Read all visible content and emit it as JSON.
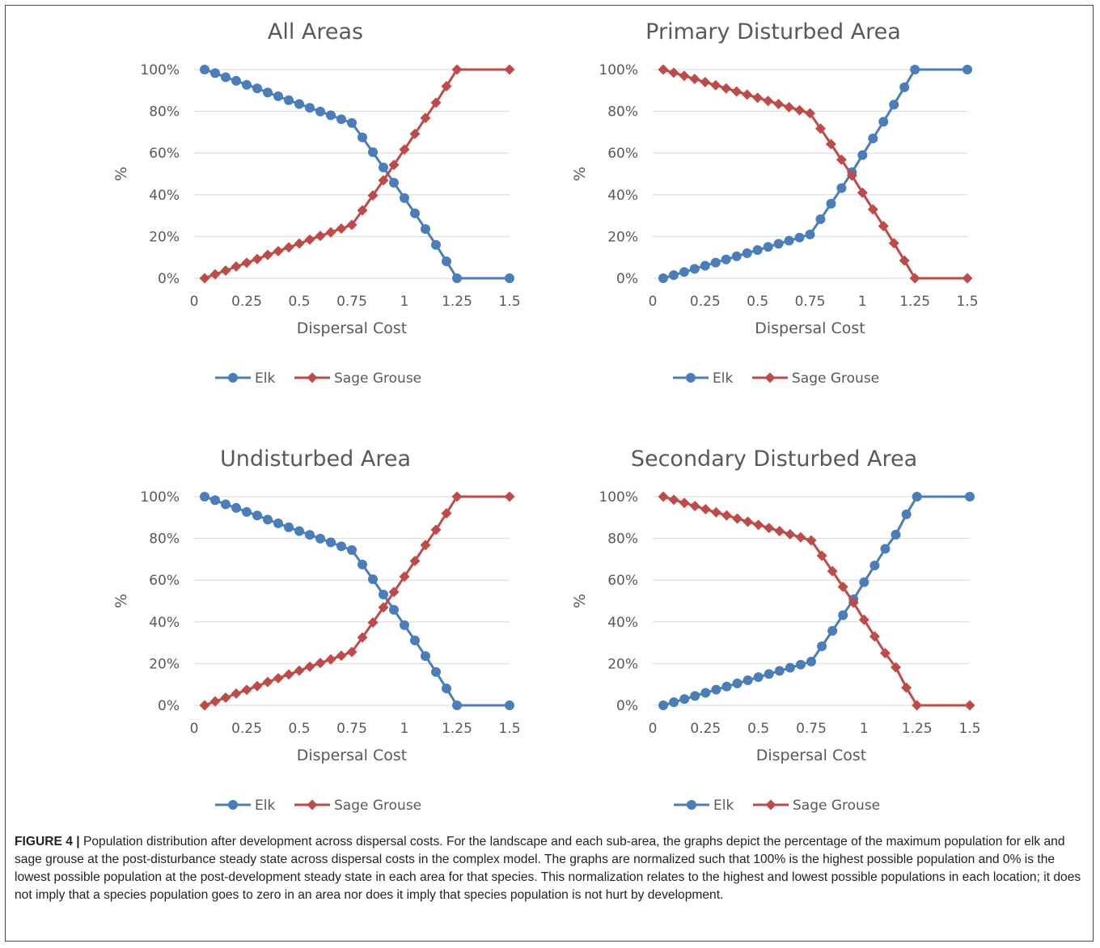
{
  "colors": {
    "elk": "#4a7ebb",
    "sage_grouse": "#be4b48",
    "grid": "#d9d9d9",
    "text": "#595959"
  },
  "legend_icons": {
    "elk": "circle-marker",
    "sage_grouse": "diamond-marker"
  },
  "chart_data": [
    {
      "type": "line",
      "title": "All Areas",
      "xlabel": "Dispersal Cost",
      "ylabel": "%",
      "xlim": [
        0,
        1.5
      ],
      "ylim": [
        0,
        100
      ],
      "x_ticks": [
        "0",
        "0.25",
        "0.5",
        "0.75",
        "1",
        "1.25",
        "1.5"
      ],
      "y_ticks": [
        "0%",
        "20%",
        "40%",
        "60%",
        "80%",
        "100%"
      ],
      "grid": "horizontal",
      "legend": "bottom",
      "x": [
        0.05,
        0.1,
        0.15,
        0.2,
        0.25,
        0.3,
        0.35,
        0.4,
        0.45,
        0.5,
        0.55,
        0.6,
        0.65,
        0.7,
        0.75,
        0.8,
        0.85,
        0.9,
        0.95,
        1.0,
        1.05,
        1.1,
        1.15,
        1.2,
        1.25,
        1.5
      ],
      "series": [
        {
          "name": "Elk",
          "marker": "circle",
          "values": [
            100,
            98.3,
            96.3,
            94.6,
            92.7,
            91,
            89,
            87.2,
            85.3,
            83.5,
            81.7,
            79.9,
            78.1,
            76.2,
            74.4,
            67.5,
            60.4,
            53.1,
            45.8,
            38.4,
            31.1,
            23.6,
            16,
            8.1,
            0,
            0
          ]
        },
        {
          "name": "Sage Grouse",
          "marker": "diamond",
          "values": [
            0,
            1.9,
            3.7,
            5.6,
            7.4,
            9.2,
            11.2,
            13,
            14.8,
            16.6,
            18.5,
            20.3,
            22,
            23.8,
            25.6,
            32.5,
            39.7,
            46.9,
            54.3,
            61.7,
            69.2,
            76.8,
            84.1,
            92,
            100,
            100
          ]
        }
      ]
    },
    {
      "type": "line",
      "title": "Primary Disturbed Area",
      "xlabel": "Dispersal Cost",
      "ylabel": "%",
      "xlim": [
        0,
        1.5
      ],
      "ylim": [
        0,
        100
      ],
      "x_ticks": [
        "0",
        "0.25",
        "0.5",
        "0.75",
        "1",
        "1.25",
        "1.5"
      ],
      "y_ticks": [
        "0%",
        "20%",
        "40%",
        "60%",
        "80%",
        "100%"
      ],
      "grid": "horizontal",
      "legend": "bottom",
      "x": [
        0.05,
        0.1,
        0.15,
        0.2,
        0.25,
        0.3,
        0.35,
        0.4,
        0.45,
        0.5,
        0.55,
        0.6,
        0.65,
        0.7,
        0.75,
        0.8,
        0.85,
        0.9,
        0.95,
        1.0,
        1.05,
        1.1,
        1.15,
        1.2,
        1.25,
        1.5
      ],
      "series": [
        {
          "name": "Elk",
          "marker": "circle",
          "values": [
            0,
            1.5,
            3,
            4.5,
            6,
            7.5,
            9,
            10.5,
            12,
            13.5,
            15,
            16.5,
            18,
            19.5,
            21,
            28.3,
            35.7,
            43.2,
            50.8,
            59,
            67,
            75,
            83.2,
            91.5,
            100,
            100
          ]
        },
        {
          "name": "Sage Grouse",
          "marker": "diamond",
          "values": [
            100,
            98.5,
            97,
            95.5,
            94,
            92.5,
            91,
            89.5,
            88,
            86.5,
            85,
            83.5,
            82,
            80.5,
            79,
            71.7,
            64.3,
            56.8,
            49.2,
            41,
            33,
            25,
            16.8,
            8.5,
            0,
            0
          ]
        }
      ]
    },
    {
      "type": "line",
      "title": "Undisturbed Area",
      "xlabel": "Dispersal Cost",
      "ylabel": "%",
      "xlim": [
        0,
        1.5
      ],
      "ylim": [
        0,
        100
      ],
      "x_ticks": [
        "0",
        "0.25",
        "0.5",
        "0.75",
        "1",
        "1.25",
        "1.5"
      ],
      "y_ticks": [
        "0%",
        "20%",
        "40%",
        "60%",
        "80%",
        "100%"
      ],
      "grid": "horizontal",
      "legend": "bottom",
      "x": [
        0.05,
        0.1,
        0.15,
        0.2,
        0.25,
        0.3,
        0.35,
        0.4,
        0.45,
        0.5,
        0.55,
        0.6,
        0.65,
        0.7,
        0.75,
        0.8,
        0.85,
        0.9,
        0.95,
        1.0,
        1.05,
        1.1,
        1.15,
        1.2,
        1.25,
        1.5
      ],
      "series": [
        {
          "name": "Elk",
          "marker": "circle",
          "values": [
            100,
            98.3,
            96.3,
            94.6,
            92.7,
            91,
            89,
            87.2,
            85.3,
            83.5,
            81.7,
            79.9,
            78.1,
            76.2,
            74.4,
            67.5,
            60.4,
            53.1,
            45.8,
            38.4,
            31.1,
            23.6,
            16,
            8.1,
            0,
            0
          ]
        },
        {
          "name": "Sage Grouse",
          "marker": "diamond",
          "values": [
            0,
            1.9,
            3.7,
            5.6,
            7.4,
            9.2,
            11.2,
            13,
            14.8,
            16.6,
            18.5,
            20.3,
            22,
            23.8,
            25.6,
            32.5,
            39.7,
            46.9,
            54.3,
            61.7,
            69.2,
            76.8,
            84.1,
            92,
            100,
            100
          ]
        }
      ]
    },
    {
      "type": "line",
      "title": "Secondary Disturbed Area",
      "xlabel": "Dispersal Cost",
      "ylabel": "%",
      "xlim": [
        0,
        1.5
      ],
      "ylim": [
        0,
        100
      ],
      "x_ticks": [
        "0",
        "0.25",
        "0.5",
        "0.75",
        "1",
        "1.25",
        "1.5"
      ],
      "y_ticks": [
        "0%",
        "20%",
        "40%",
        "60%",
        "80%",
        "100%"
      ],
      "grid": "horizontal",
      "legend": "bottom",
      "x": [
        0.05,
        0.1,
        0.15,
        0.2,
        0.25,
        0.3,
        0.35,
        0.4,
        0.45,
        0.5,
        0.55,
        0.6,
        0.65,
        0.7,
        0.75,
        0.8,
        0.85,
        0.9,
        0.95,
        1.0,
        1.05,
        1.1,
        1.15,
        1.2,
        1.25,
        1.5
      ],
      "series": [
        {
          "name": "Elk",
          "marker": "circle",
          "values": [
            0,
            1.5,
            3,
            4.5,
            6,
            7.5,
            9,
            10.5,
            12,
            13.5,
            15,
            16.5,
            18,
            19.5,
            21,
            28.3,
            35.7,
            43.2,
            50.8,
            59,
            67,
            75,
            81.8,
            91.5,
            100,
            100
          ]
        },
        {
          "name": "Sage Grouse",
          "marker": "diamond",
          "values": [
            100,
            98.5,
            97,
            95.5,
            94,
            92.5,
            91,
            89.5,
            88,
            86.5,
            85,
            83.5,
            82,
            80.5,
            79,
            71.7,
            64.3,
            56.8,
            49.2,
            41,
            33,
            25,
            18.2,
            8.5,
            0,
            0
          ]
        }
      ]
    }
  ],
  "caption": {
    "label": "FIGURE 4 |",
    "text": " Population distribution after development across dispersal costs. For the landscape and each sub-area, the graphs depict the percentage of the maximum population for elk and sage grouse at the post-disturbance steady state across dispersal costs in the complex model. The graphs are normalized such that 100% is the highest possible population and 0% is the lowest possible population at the post-development steady state in each area for that species. This normalization relates to the highest and lowest possible populations in each location; it does not imply that a species population goes to zero in an area nor does it imply that species population is not hurt by development."
  }
}
